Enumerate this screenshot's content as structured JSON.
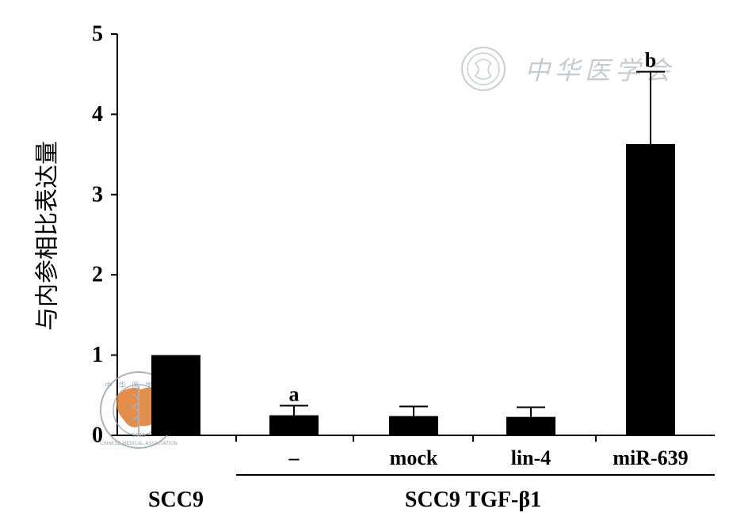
{
  "chart_data": {
    "type": "bar",
    "ylabel": "与内参相比表达量",
    "ylim": [
      0,
      5
    ],
    "yticks": [
      "0",
      "1",
      "2",
      "3",
      "4",
      "5"
    ],
    "categories": [
      "SCC9",
      "–",
      "mock",
      "lin-4",
      "miR-639"
    ],
    "values": [
      1.0,
      0.25,
      0.24,
      0.23,
      3.63
    ],
    "errors": [
      0,
      0.12,
      0.12,
      0.12,
      0.9
    ],
    "annotations": [
      "",
      "a",
      "",
      "",
      "b"
    ],
    "group_labels": {
      "control": "SCC9",
      "treated": "SCC9 TGF-β1"
    },
    "bar_color": "#000000",
    "grid": false
  },
  "watermark": {
    "text": "中华医学会",
    "seal_text": "中华医学会",
    "seal_subtext": "CHINESE MEDICAL ASSOCIATION",
    "seal_year": "1915",
    "seal_color": "#9aa6b3",
    "map_color": "#e07b2f"
  }
}
